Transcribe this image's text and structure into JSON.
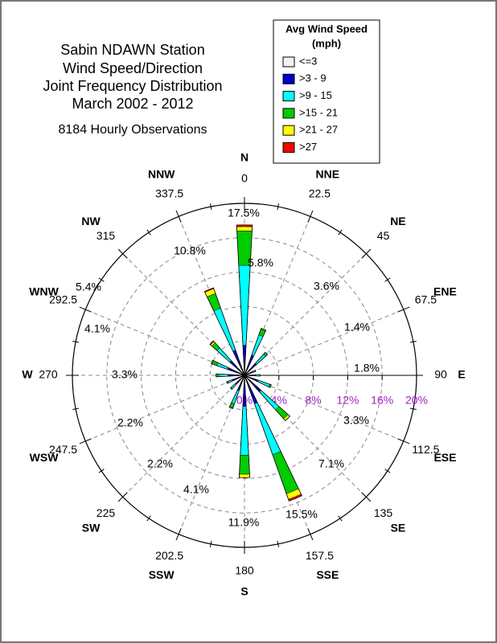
{
  "chart_data": {
    "type": "windrose",
    "title": [
      "Sabin NDAWN Station",
      "Wind Speed/Direction",
      "Joint Frequency Distribution",
      "March 2002 - 2012"
    ],
    "subtitle": "8184 Hourly Observations",
    "legend_title": [
      "Avg Wind Speed",
      "(mph)"
    ],
    "legend": "upper right",
    "directions": [
      "N",
      "NNE",
      "NE",
      "ENE",
      "E",
      "ESE",
      "SE",
      "SSE",
      "S",
      "SSW",
      "SW",
      "WSW",
      "W",
      "WNW",
      "NW",
      "NNW"
    ],
    "angles": [
      0,
      22.5,
      45,
      67.5,
      90,
      112.5,
      135,
      157.5,
      180,
      202.5,
      225,
      247.5,
      270,
      292.5,
      315,
      337.5
    ],
    "series": [
      {
        "name": "<=3",
        "color": "#f2f2f2",
        "values": [
          0.1,
          0.1,
          0.1,
          0.1,
          0.1,
          0.1,
          0.1,
          0.1,
          0.1,
          0.1,
          0.1,
          0.1,
          0.1,
          0.1,
          0.1,
          0.1
        ]
      },
      {
        "name": ">3 - 9",
        "color": "#0000cc",
        "values": [
          3.4,
          2.4,
          1.8,
          0.9,
          1.2,
          1.6,
          2.5,
          3.4,
          3.5,
          1.8,
          1.3,
          1.4,
          1.8,
          2.0,
          2.2,
          3.0
        ]
      },
      {
        "name": ">9 - 15",
        "color": "#00ffff",
        "values": [
          9.3,
          2.5,
          1.4,
          0.4,
          0.5,
          1.4,
          2.8,
          6.3,
          5.7,
          1.6,
          0.7,
          0.6,
          1.1,
          1.3,
          2.0,
          5.2
        ]
      },
      {
        "name": ">15 - 21",
        "color": "#00cc00",
        "values": [
          4.0,
          0.7,
          0.3,
          0,
          0,
          0.2,
          1.4,
          4.8,
          2.2,
          0.5,
          0.1,
          0.1,
          0.3,
          0.6,
          0.8,
          1.8
        ]
      },
      {
        "name": ">21 - 27",
        "color": "#ffff00",
        "values": [
          0.5,
          0.1,
          0,
          0,
          0,
          0,
          0.3,
          0.7,
          0.4,
          0.1,
          0,
          0,
          0,
          0.1,
          0.2,
          0.6
        ]
      },
      {
        "name": ">27",
        "color": "#ff0000",
        "values": [
          0.2,
          0,
          0,
          0,
          0,
          0,
          0,
          0.2,
          0,
          0,
          0,
          0,
          0,
          0,
          0.1,
          0.1
        ]
      }
    ],
    "totals": {
      "values": [
        17.5,
        5.8,
        3.6,
        1.4,
        1.8,
        3.3,
        7.1,
        15.5,
        11.9,
        4.1,
        2.2,
        2.2,
        3.3,
        4.1,
        5.4,
        10.8
      ],
      "value_labels": [
        "17.5%",
        "5.8%",
        "3.6%",
        "1.4%",
        "1.8%",
        "3.3%",
        "7.1%",
        "15.5%",
        "11.9%",
        "4.1%",
        "2.2%",
        "2.2%",
        "3.3%",
        "4.1%",
        "5.4%",
        "10.8%"
      ]
    },
    "rlim": [
      0,
      20
    ],
    "rticks": [
      {
        "value": 0,
        "label": "0%"
      },
      {
        "value": 4,
        "label": "4%"
      },
      {
        "value": 8,
        "label": "8%"
      },
      {
        "value": 12,
        "label": "12%"
      },
      {
        "value": 16,
        "label": "16%"
      },
      {
        "value": 20,
        "label": "20%"
      }
    ]
  }
}
